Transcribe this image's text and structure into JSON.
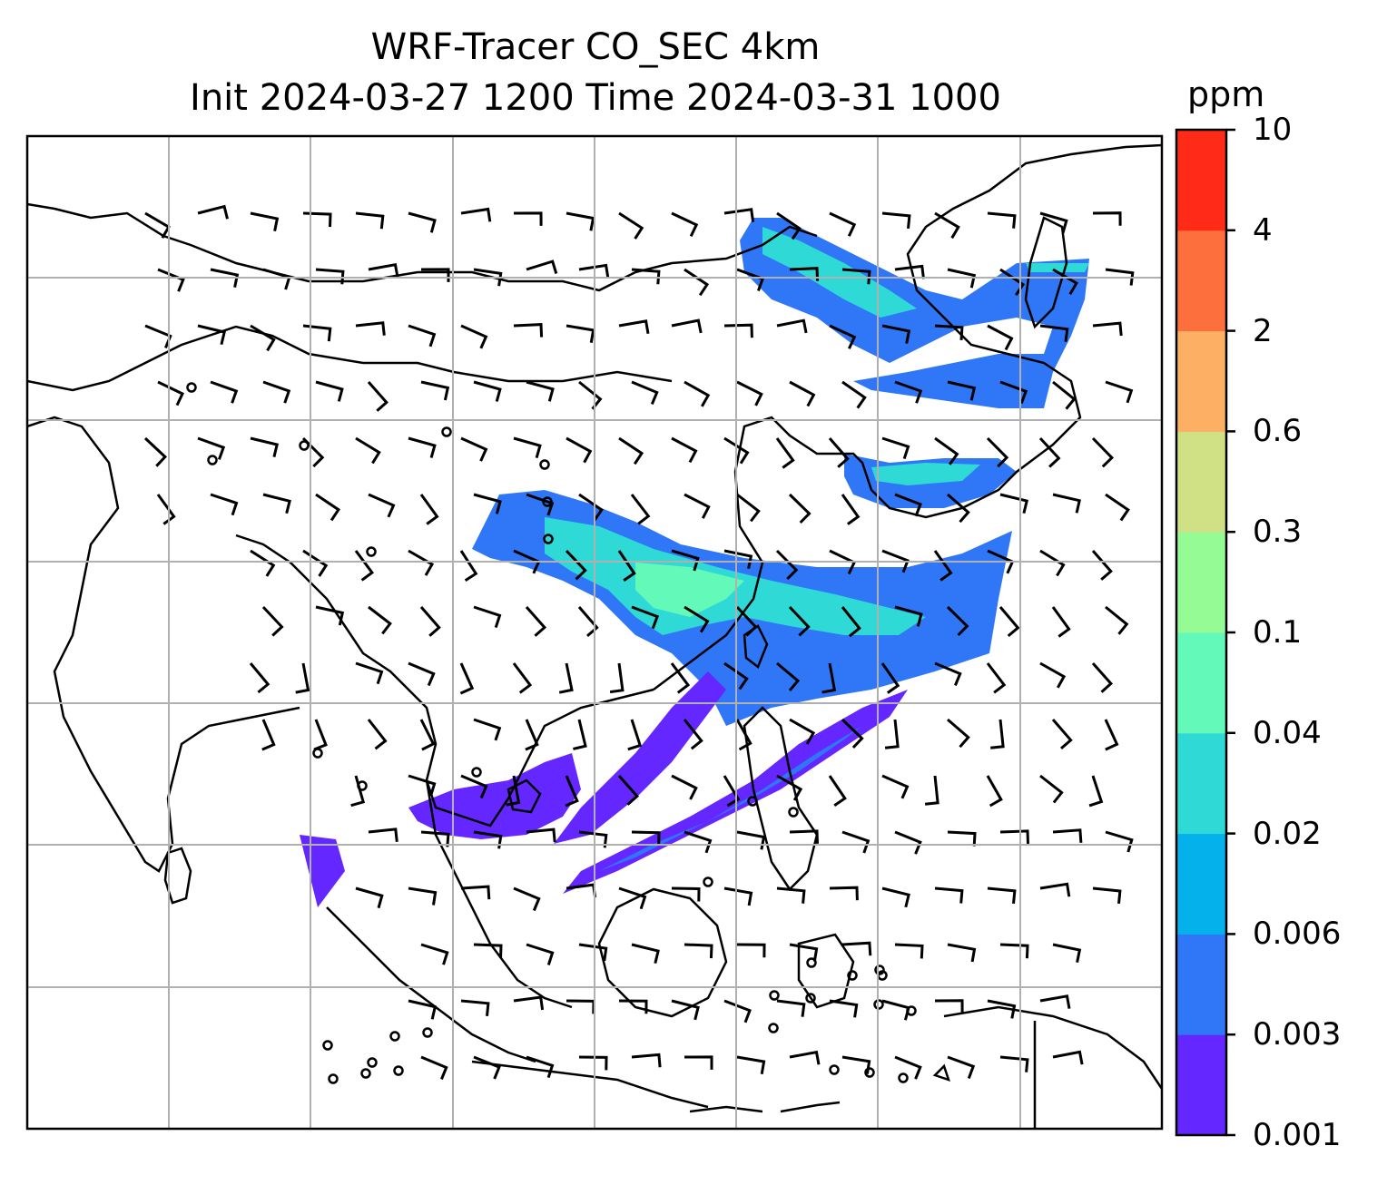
{
  "title": {
    "line1": "WRF-Tracer CO_SEC 4km",
    "line2": "Init 2024-03-27 1200 Time 2024-03-31 1000"
  },
  "colorbar": {
    "unit": "ppm",
    "ticks": [
      "0.001",
      "0.003",
      "0.006",
      "0.02",
      "0.04",
      "0.1",
      "0.3",
      "0.6",
      "2",
      "4",
      "10"
    ],
    "colors": [
      "#6427ff",
      "#2f77f7",
      "#05b1ea",
      "#2fdad6",
      "#63fab9",
      "#95fb95",
      "#cfe085",
      "#fdb063",
      "#fd6f3d",
      "#ff2a17"
    ]
  },
  "map": {
    "gridlines": true,
    "fill_palette": {
      "lowest": "#6427ff",
      "low": "#2f77f7",
      "mid": "#2fdad6",
      "high": "#63fab9"
    },
    "plume_colors": [
      "#6427ff",
      "#2f77f7",
      "#2fdad6",
      "#63fab9"
    ]
  }
}
